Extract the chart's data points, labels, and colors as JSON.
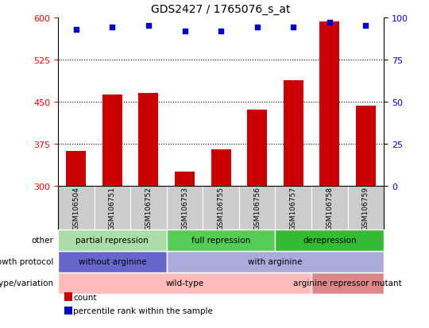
{
  "title": "GDS2427 / 1765076_s_at",
  "samples": [
    "GSM106504",
    "GSM106751",
    "GSM106752",
    "GSM106753",
    "GSM106755",
    "GSM106756",
    "GSM106757",
    "GSM106758",
    "GSM106759"
  ],
  "counts": [
    362,
    463,
    465,
    325,
    365,
    435,
    488,
    593,
    443
  ],
  "percentile_ranks": [
    93,
    94,
    95,
    92,
    92,
    94,
    94,
    97,
    95
  ],
  "ylim_left": [
    300,
    600
  ],
  "ylim_right": [
    0,
    100
  ],
  "yticks_left": [
    300,
    375,
    450,
    525,
    600
  ],
  "yticks_right": [
    0,
    25,
    50,
    75,
    100
  ],
  "bar_color": "#cc0000",
  "dot_color": "#0000cc",
  "bar_width": 0.55,
  "grid_lines": [
    375,
    450,
    525
  ],
  "annotation_rows": [
    {
      "label": "other",
      "segments": [
        {
          "text": "partial repression",
          "start": 0,
          "end": 3,
          "color": "#aaddaa"
        },
        {
          "text": "full repression",
          "start": 3,
          "end": 6,
          "color": "#55cc55"
        },
        {
          "text": "derepression",
          "start": 6,
          "end": 9,
          "color": "#33bb33"
        }
      ]
    },
    {
      "label": "growth protocol",
      "segments": [
        {
          "text": "without arginine",
          "start": 0,
          "end": 3,
          "color": "#6666cc"
        },
        {
          "text": "with arginine",
          "start": 3,
          "end": 9,
          "color": "#aaaadd"
        }
      ]
    },
    {
      "label": "genotype/variation",
      "segments": [
        {
          "text": "wild-type",
          "start": 0,
          "end": 7,
          "color": "#ffbbbb"
        },
        {
          "text": "arginine repressor mutant",
          "start": 7,
          "end": 9,
          "color": "#dd8888"
        }
      ]
    }
  ],
  "legend_items": [
    {
      "label": "count",
      "color": "#cc0000"
    },
    {
      "label": "percentile rank within the sample",
      "color": "#0000cc"
    }
  ],
  "xtick_bg_color": "#cccccc",
  "xtick_sep_color": "#ffffff"
}
